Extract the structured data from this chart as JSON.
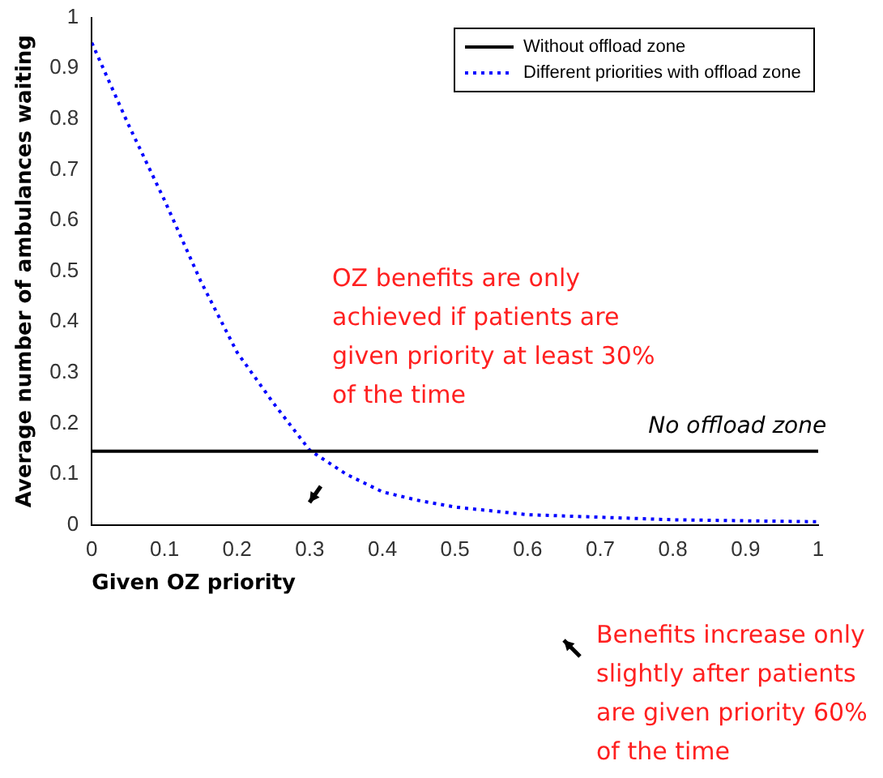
{
  "chart_data": {
    "type": "line",
    "xlabel": "Given OZ priority",
    "ylabel": "Average number of ambulances waiting",
    "xlim": [
      0,
      1
    ],
    "ylim": [
      0,
      1
    ],
    "xticks": [
      0,
      0.1,
      0.2,
      0.3,
      0.4,
      0.5,
      0.6,
      0.7,
      0.8,
      0.9,
      1
    ],
    "yticks": [
      0,
      0.1,
      0.2,
      0.3,
      0.4,
      0.5,
      0.6,
      0.7,
      0.8,
      0.9,
      1
    ],
    "series": [
      {
        "name": "Without offload zone",
        "color": "#000000",
        "line_style": "solid",
        "x": [
          0,
          1
        ],
        "values": [
          0.145,
          0.145
        ]
      },
      {
        "name": "Different priorities with offload zone",
        "color": "#0000ff",
        "line_style": "dotted",
        "x": [
          0,
          0.05,
          0.1,
          0.15,
          0.2,
          0.25,
          0.3,
          0.35,
          0.4,
          0.45,
          0.5,
          0.6,
          0.7,
          0.8,
          0.9,
          1
        ],
        "values": [
          0.95,
          0.79,
          0.64,
          0.48,
          0.34,
          0.24,
          0.147,
          0.1,
          0.065,
          0.048,
          0.035,
          0.02,
          0.015,
          0.01,
          0.008,
          0.006
        ]
      }
    ],
    "annotations": [
      "OZ benefits are only achieved if patients are given priority at least 30% of the time",
      "Benefits increase only slightly after patients are given priority 60% of the time",
      {
        "text": "No offload zone",
        "x": 0.9,
        "y": 0.145
      }
    ],
    "grid": false,
    "legend": "top right",
    "marker": "none"
  }
}
